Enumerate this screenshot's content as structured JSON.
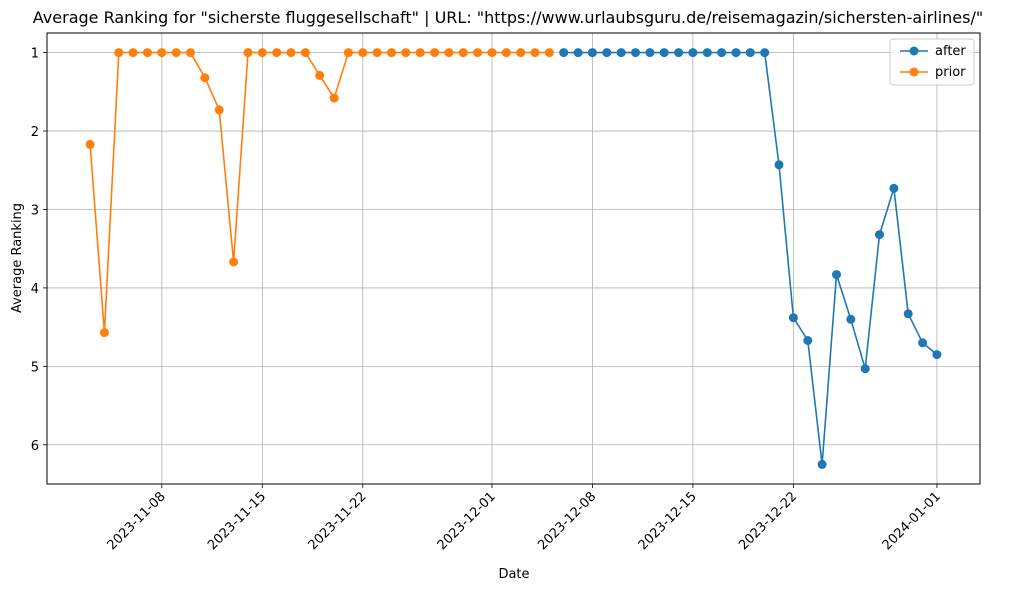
{
  "chart_data": {
    "type": "line",
    "title": "Average Ranking for \"sicherste fluggesellschaft\" | URL: \"https://www.urlaubsguru.de/reisemagazin/sichersten-airlines/\"",
    "xlabel": "Date",
    "ylabel": "Average Ranking",
    "y_inverted": true,
    "ylim": [
      6.5,
      0.75
    ],
    "xlim": [
      "2023-10-31",
      "2024-01-04"
    ],
    "grid": true,
    "legend_position": "top-right",
    "x_ticks": [
      "2023-11-08",
      "2023-11-15",
      "2023-11-22",
      "2023-12-01",
      "2023-12-08",
      "2023-12-15",
      "2023-12-22",
      "2024-01-01"
    ],
    "y_ticks": [
      1,
      2,
      3,
      4,
      5,
      6
    ],
    "series": [
      {
        "name": "after",
        "color": "#1f77b4",
        "x": [
          "2023-12-06",
          "2023-12-07",
          "2023-12-08",
          "2023-12-09",
          "2023-12-10",
          "2023-12-11",
          "2023-12-12",
          "2023-12-13",
          "2023-12-14",
          "2023-12-15",
          "2023-12-16",
          "2023-12-17",
          "2023-12-18",
          "2023-12-19",
          "2023-12-20",
          "2023-12-21",
          "2023-12-22",
          "2023-12-23",
          "2023-12-24",
          "2023-12-25",
          "2023-12-26",
          "2023-12-27",
          "2023-12-28",
          "2023-12-29",
          "2023-12-30",
          "2023-12-31",
          "2024-01-01"
        ],
        "values": [
          1,
          1,
          1,
          1,
          1,
          1,
          1,
          1,
          1,
          1,
          1,
          1,
          1,
          1,
          1,
          2.43,
          4.38,
          4.67,
          6.25,
          3.83,
          4.4,
          5.03,
          3.32,
          2.73,
          4.33,
          4.7,
          4.85
        ]
      },
      {
        "name": "prior",
        "color": "#ff7f0e",
        "x": [
          "2023-11-03",
          "2023-11-04",
          "2023-11-05",
          "2023-11-06",
          "2023-11-07",
          "2023-11-08",
          "2023-11-09",
          "2023-11-10",
          "2023-11-11",
          "2023-11-12",
          "2023-11-13",
          "2023-11-14",
          "2023-11-15",
          "2023-11-16",
          "2023-11-17",
          "2023-11-18",
          "2023-11-19",
          "2023-11-20",
          "2023-11-21",
          "2023-11-22",
          "2023-11-23",
          "2023-11-24",
          "2023-11-25",
          "2023-11-26",
          "2023-11-27",
          "2023-11-28",
          "2023-11-29",
          "2023-11-30",
          "2023-12-01",
          "2023-12-02",
          "2023-12-03",
          "2023-12-04",
          "2023-12-05"
        ],
        "values": [
          2.17,
          4.57,
          1,
          1,
          1,
          1,
          1,
          1,
          1.32,
          1.73,
          3.67,
          1,
          1,
          1,
          1,
          1,
          1.29,
          1.58,
          1,
          1,
          1,
          1,
          1,
          1,
          1,
          1,
          1,
          1,
          1,
          1,
          1,
          1,
          1
        ]
      }
    ]
  }
}
